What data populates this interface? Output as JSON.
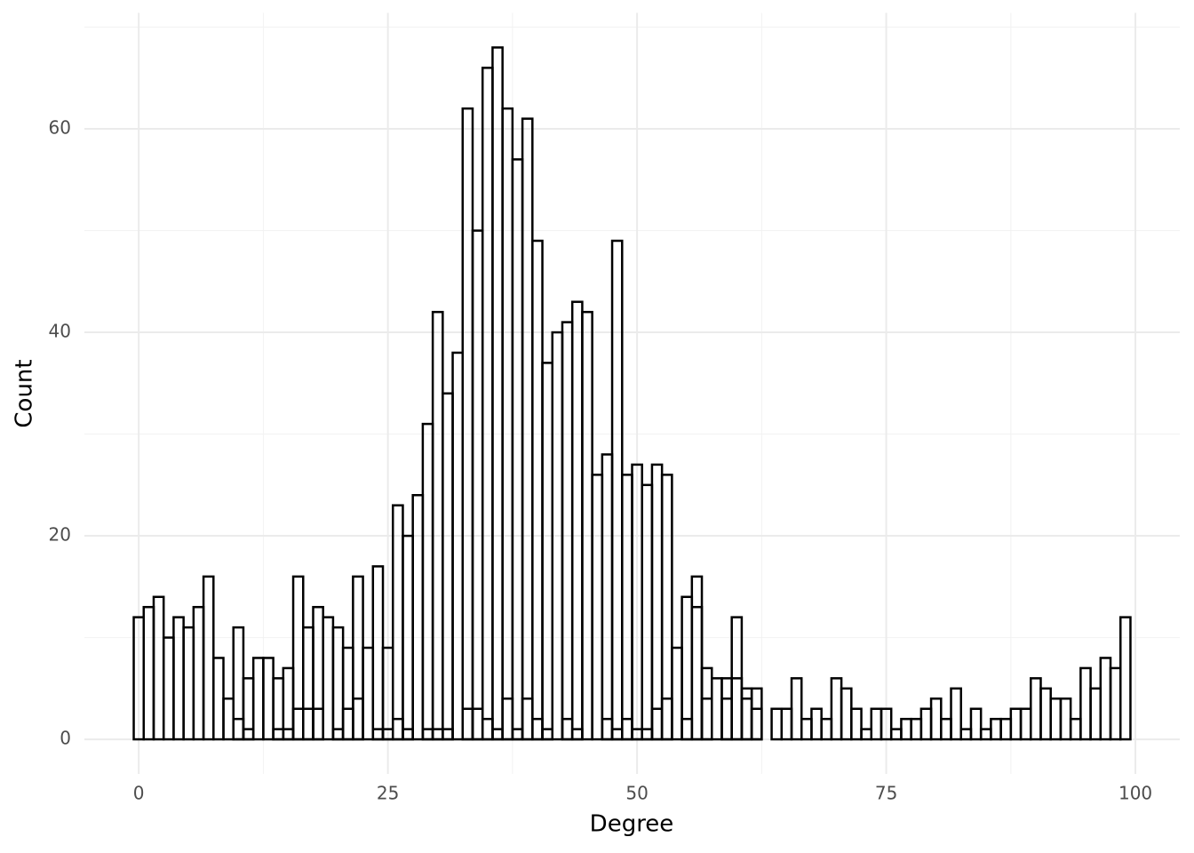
{
  "chart_data": {
    "type": "histogram",
    "x_label": "Degree",
    "y_label": "Count",
    "bins": [
      -0.5,
      0.5,
      1.5,
      2.5,
      3.5,
      4.5,
      5.5,
      6.5,
      7.5,
      8.5,
      9.5,
      10.5,
      11.5,
      12.5,
      13.5,
      14.5,
      15.5,
      16.5,
      17.5,
      18.5,
      19.5,
      20.5,
      21.5,
      22.5,
      23.5,
      24.5,
      25.5,
      26.5,
      27.5,
      28.5,
      29.5,
      30.5,
      31.5,
      32.5,
      33.5,
      34.5,
      35.5,
      36.5,
      37.5,
      38.5,
      39.5,
      40.5,
      41.5,
      42.5,
      43.5,
      44.5,
      45.5,
      46.5,
      47.5,
      48.5,
      49.5,
      50.5,
      51.5,
      52.5,
      53.5,
      54.5,
      55.5,
      56.5,
      57.5,
      58.5,
      59.5,
      60.5,
      61.5,
      62.5,
      63.5,
      64.5,
      65.5,
      66.5,
      67.5,
      68.5,
      69.5,
      70.5,
      71.5,
      72.5,
      73.5,
      74.5,
      75.5,
      76.5,
      77.5,
      78.5,
      79.5,
      80.5,
      81.5,
      82.5,
      83.5,
      84.5,
      85.5,
      86.5,
      87.5,
      88.5,
      89.5,
      90.5,
      91.5,
      92.5,
      93.5,
      94.5,
      95.5,
      96.5,
      97.5,
      98.5,
      99.5
    ],
    "series": [
      {
        "color": "#000000",
        "values": [
          12,
          13,
          14,
          10,
          12,
          11,
          13,
          16,
          8,
          4,
          11,
          6,
          8,
          8,
          6,
          7,
          16,
          11,
          13,
          12,
          11,
          9,
          16,
          9,
          17,
          9,
          23,
          20,
          24,
          31,
          42,
          34,
          38,
          62,
          50,
          66,
          68,
          62,
          57,
          61,
          49,
          37,
          40,
          41,
          43,
          42,
          26,
          28,
          49,
          26,
          27,
          25,
          27,
          26,
          9,
          14,
          16,
          7,
          6,
          6,
          12,
          5,
          5,
          0,
          3,
          3,
          6,
          2,
          3,
          2,
          6,
          5,
          3,
          1,
          3,
          3,
          1,
          2,
          2,
          3,
          4,
          2,
          5,
          1,
          3,
          1,
          2,
          2,
          3,
          3,
          6,
          5,
          4,
          4,
          2,
          7,
          5,
          8,
          7,
          12
        ]
      },
      {
        "color": "#000000",
        "values": [
          0,
          0,
          0,
          0,
          0,
          0,
          0,
          0,
          0,
          0,
          2,
          1,
          0,
          0,
          1,
          1,
          3,
          3,
          3,
          0,
          1,
          3,
          4,
          0,
          1,
          1,
          2,
          1,
          0,
          1,
          1,
          1,
          0,
          3,
          3,
          2,
          1,
          4,
          1,
          4,
          2,
          1,
          0,
          2,
          1,
          0,
          0,
          2,
          1,
          2,
          1,
          1,
          3,
          4,
          0,
          2,
          13,
          4,
          0,
          4,
          6,
          4,
          3,
          0,
          0,
          0,
          0,
          0,
          0,
          0,
          0,
          0,
          0,
          0,
          0,
          0,
          0,
          0,
          0,
          0,
          0,
          0,
          0,
          0,
          0,
          0,
          0,
          0,
          0,
          0,
          0,
          0,
          0,
          0,
          0,
          0,
          0,
          0,
          0,
          0
        ]
      }
    ],
    "xlim": [
      -5.45,
      104.45
    ],
    "xticks": [
      0,
      25,
      50,
      75,
      100
    ],
    "x_minor_ticks": [
      12.5,
      37.5,
      62.5,
      87.5
    ],
    "ylim": [
      -3.4,
      71.4
    ],
    "yticks": [
      0,
      20,
      40,
      60
    ],
    "y_minor_ticks": [
      10,
      30,
      50,
      70
    ],
    "grid": true
  }
}
